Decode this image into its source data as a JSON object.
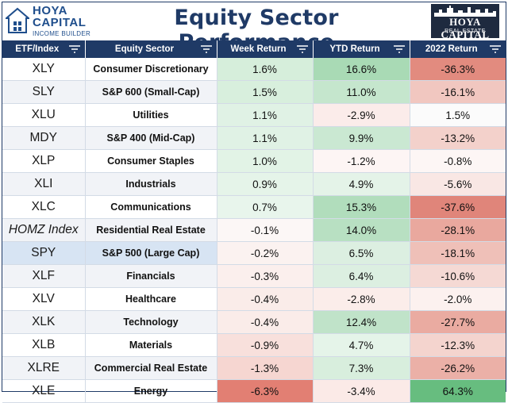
{
  "branding": {
    "left_logo_line1": "HOYA CAPITAL",
    "left_logo_line2": "INCOME BUILDER",
    "right_logo_line1": "HOYA CAPITAL",
    "right_logo_line2": "REAL ESTATE"
  },
  "title": "Equity Sector Performance",
  "headers": {
    "etf": "ETF/Index",
    "sector": "Equity Sector",
    "week": "Week Return",
    "ytd": "YTD Return",
    "y2022": "2022 Return"
  },
  "rows": [
    {
      "etf": "XLY",
      "sector": "Consumer Discretionary",
      "week": "1.6%",
      "ytd": "16.6%",
      "y2022": "-36.3%",
      "week_color": "#d6eedb",
      "ytd_color": "#a9dab5",
      "y2022_color": "#e28b7f"
    },
    {
      "etf": "SLY",
      "sector": "S&P 600 (Small-Cap)",
      "week": "1.5%",
      "ytd": "11.0%",
      "y2022": "-16.1%",
      "week_color": "#d8efdd",
      "ytd_color": "#c5e6cd",
      "y2022_color": "#f1c7c0"
    },
    {
      "etf": "XLU",
      "sector": "Utilities",
      "week": "1.1%",
      "ytd": "-2.9%",
      "y2022": "1.5%",
      "week_color": "#e0f2e5",
      "ytd_color": "#fbecea",
      "y2022_color": "#fbfbfb"
    },
    {
      "etf": "MDY",
      "sector": "S&P 400 (Mid-Cap)",
      "week": "1.1%",
      "ytd": "9.9%",
      "y2022": "-13.2%",
      "week_color": "#e0f2e5",
      "ytd_color": "#cae8d2",
      "y2022_color": "#f3d1cb"
    },
    {
      "etf": "XLP",
      "sector": "Consumer Staples",
      "week": "1.0%",
      "ytd": "-1.2%",
      "y2022": "-0.8%",
      "week_color": "#e2f3e6",
      "ytd_color": "#fdf5f4",
      "y2022_color": "#fdf6f5"
    },
    {
      "etf": "XLI",
      "sector": "Industrials",
      "week": "0.9%",
      "ytd": "4.9%",
      "y2022": "-5.6%",
      "week_color": "#e5f4e9",
      "ytd_color": "#e4f3e8",
      "y2022_color": "#f9e7e4"
    },
    {
      "etf": "XLC",
      "sector": "Communications",
      "week": "0.7%",
      "ytd": "15.3%",
      "y2022": "-37.6%",
      "week_color": "#e8f5ec",
      "ytd_color": "#b1ddbc",
      "y2022_color": "#e0857a"
    },
    {
      "etf": "HOMZ Index",
      "sector": "Residential Real Estate",
      "week": "-0.1%",
      "ytd": "14.0%",
      "y2022": "-28.1%",
      "week_color": "#fcf7f6",
      "ytd_color": "#b8e0c2",
      "y2022_color": "#e9a89e"
    },
    {
      "etf": "SPY",
      "sector": "S&P 500 (Large Cap)",
      "week": "-0.2%",
      "ytd": "6.5%",
      "y2022": "-18.1%",
      "week_color": "#fbf2f0",
      "ytd_color": "#dcefe1",
      "y2022_color": "#efc0b8"
    },
    {
      "etf": "XLF",
      "sector": "Financials",
      "week": "-0.3%",
      "ytd": "6.4%",
      "y2022": "-10.6%",
      "week_color": "#fbefed",
      "ytd_color": "#dcefe1",
      "y2022_color": "#f5d9d4"
    },
    {
      "etf": "XLV",
      "sector": "Healthcare",
      "week": "-0.4%",
      "ytd": "-2.8%",
      "y2022": "-2.0%",
      "week_color": "#faece9",
      "ytd_color": "#fbedea",
      "y2022_color": "#fcf1ef"
    },
    {
      "etf": "XLK",
      "sector": "Technology",
      "week": "-0.4%",
      "ytd": "12.4%",
      "y2022": "-27.7%",
      "week_color": "#faece9",
      "ytd_color": "#c0e3c9",
      "y2022_color": "#eaaba1"
    },
    {
      "etf": "XLB",
      "sector": "Materials",
      "week": "-0.9%",
      "ytd": "4.7%",
      "y2022": "-12.3%",
      "week_color": "#f8e0dc",
      "ytd_color": "#e5f4e9",
      "y2022_color": "#f4d4ce"
    },
    {
      "etf": "XLRE",
      "sector": "Commercial Real Estate",
      "week": "-1.3%",
      "ytd": "7.3%",
      "y2022": "-26.2%",
      "week_color": "#f6d6d1",
      "ytd_color": "#d8eedd",
      "y2022_color": "#ebb0a7"
    },
    {
      "etf": "XLE",
      "sector": "Energy",
      "week": "-6.3%",
      "ytd": "-3.4%",
      "y2022": "64.3%",
      "week_color": "#e27f73",
      "ytd_color": "#fbeae7",
      "y2022_color": "#67bd7f"
    }
  ]
}
